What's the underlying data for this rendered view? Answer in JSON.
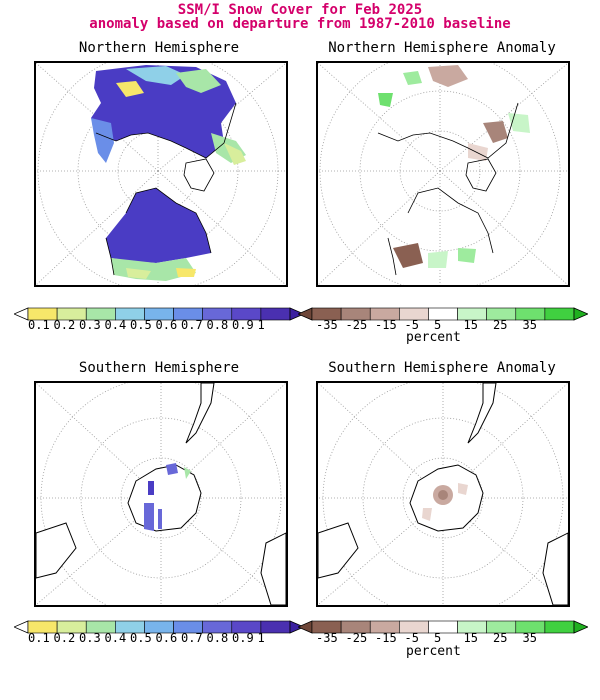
{
  "header": {
    "title_line1": "SSM/I Snow Cover for Feb 2025",
    "title_line2": "anomaly based on departure from 1987-2010 baseline",
    "title_color": "#d4006b"
  },
  "panels": {
    "nh": {
      "title": "Northern Hemisphere"
    },
    "nh_anom": {
      "title": "Northern Hemisphere Anomaly"
    },
    "sh": {
      "title": "Southern Hemisphere"
    },
    "sh_anom": {
      "title": "Southern Hemisphere Anomaly"
    }
  },
  "colorbars": {
    "cover": {
      "labels": [
        "0.1",
        "0.2",
        "0.3",
        "0.4",
        "0.5",
        "0.6",
        "0.7",
        "0.8",
        "0.9",
        "1"
      ],
      "colors": [
        "#ffffff",
        "#f7e76a",
        "#d8ee9c",
        "#a8e6a8",
        "#8fd0e8",
        "#78b4ec",
        "#6a8ee8",
        "#6868d8",
        "#5a48c8",
        "#4a30b0",
        "#3a20a0"
      ]
    },
    "anomaly": {
      "labels": [
        "-35",
        "-25",
        "-15",
        "-5",
        "5",
        "15",
        "25",
        "35"
      ],
      "colors": [
        "#6e4638",
        "#8a6052",
        "#a8857a",
        "#c9a9a0",
        "#e9d6d0",
        "#ffffff",
        "#c8f5c8",
        "#9eeb9e",
        "#6ee06e",
        "#40d040",
        "#20b020"
      ],
      "unit": "percent"
    }
  }
}
